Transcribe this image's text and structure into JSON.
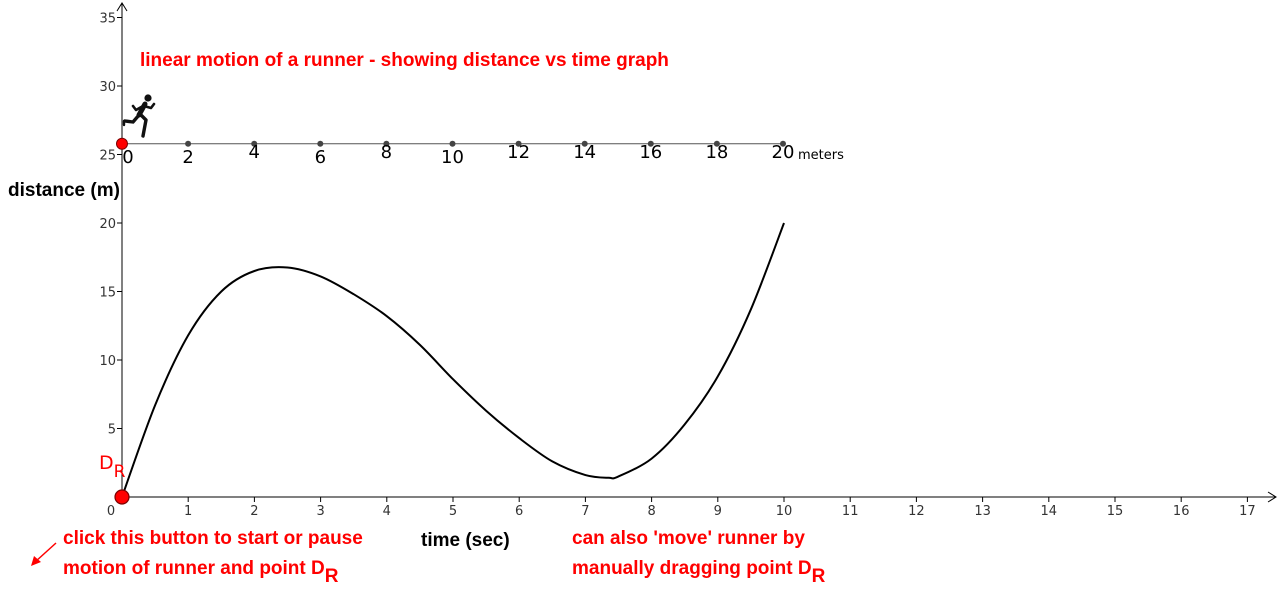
{
  "chart_data": {
    "type": "line",
    "title": "linear motion of a runner - showing distance vs time graph",
    "xlabel": "time (sec)",
    "ylabel": "distance (m)",
    "xlim": [
      0,
      17
    ],
    "ylim": [
      0,
      35
    ],
    "x_ticks": [
      "0",
      "1",
      "2",
      "3",
      "4",
      "5",
      "6",
      "7",
      "8",
      "9",
      "10",
      "11",
      "12",
      "13",
      "14",
      "15",
      "16",
      "17"
    ],
    "y_ticks": [
      "5",
      "10",
      "15",
      "20",
      "25",
      "30",
      "35"
    ],
    "grid": false,
    "series": [
      {
        "x": [
          0,
          0.5,
          1,
          1.5,
          2,
          2.5,
          3,
          3.5,
          4,
          4.5,
          5,
          5.5,
          6,
          6.5,
          7,
          7.35,
          7.5,
          8,
          8.5,
          9,
          9.5,
          10
        ],
        "y": [
          0,
          6.7,
          11.8,
          15.0,
          16.5,
          16.75,
          16.1,
          14.8,
          13.2,
          11.1,
          8.6,
          6.3,
          4.3,
          2.6,
          1.6,
          1.4,
          1.5,
          2.8,
          5.3,
          8.8,
          13.7,
          20.0
        ]
      }
    ],
    "point": {
      "label": "D",
      "subscript": "R",
      "x": 0,
      "y": 0,
      "color": "#ff0000"
    },
    "track": {
      "labels": [
        "0",
        "2",
        "4",
        "6",
        "8",
        "10",
        "12",
        "14",
        "16",
        "18",
        "20"
      ],
      "values": [
        0,
        2,
        4,
        6,
        8,
        10,
        12,
        14,
        16,
        18,
        20
      ],
      "y_level": 26,
      "unit": "meters",
      "runner_position": 0,
      "runner_icon": "runner-icon"
    },
    "annotations": {
      "button_hint_line1": "click this button to start or pause",
      "button_hint_line2": "motion of runner and point D",
      "button_hint_sub": "R",
      "drag_hint_line1": "can also 'move' runner by",
      "drag_hint_line2": "manually dragging point D",
      "drag_hint_sub": "R",
      "hint_arrow_icon": "arrow-down-left-icon"
    },
    "colors": {
      "curve": "#000000",
      "accent": "#ff0000",
      "axis": "#000000",
      "track_dot": "#444444"
    }
  }
}
